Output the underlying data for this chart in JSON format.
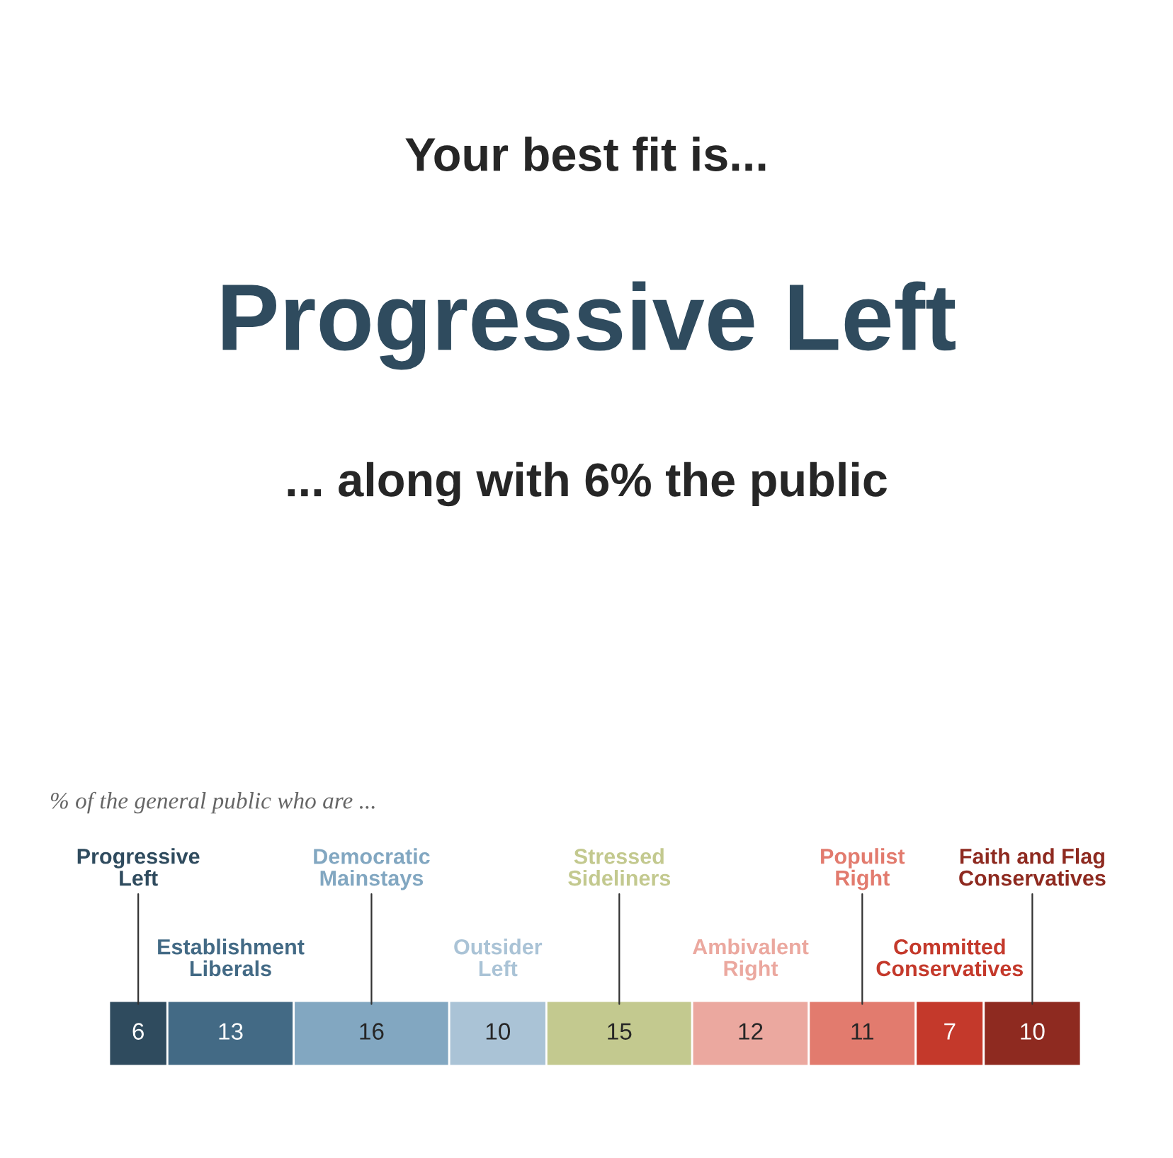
{
  "chart_data": {
    "type": "bar",
    "orientation": "horizontal",
    "stacked": true,
    "data_labels": true,
    "legend": false,
    "title": "Your best fit is...",
    "subtitle": "Progressive Left",
    "annotations": [
      "... along with 6% the public",
      "% of the general public who are ..."
    ],
    "categories": [
      null
    ],
    "series": [
      {
        "name": "Progressive Left",
        "color": "#2f4b5e",
        "values": [
          6
        ]
      },
      {
        "name": "Establishment Liberals",
        "color": "#436a85",
        "values": [
          13
        ]
      },
      {
        "name": "Democratic Mainstays",
        "color": "#82a7c1",
        "values": [
          16
        ]
      },
      {
        "name": "Outsider Left",
        "color": "#aac3d6",
        "values": [
          10
        ]
      },
      {
        "name": "Stressed Sideliners",
        "color": "#c3c98f",
        "values": [
          15
        ]
      },
      {
        "name": "Ambivalent Right",
        "color": "#eba89f",
        "values": [
          12
        ]
      },
      {
        "name": "Populist Right",
        "color": "#e27b6e",
        "values": [
          11
        ]
      },
      {
        "name": "Committed Conservatives",
        "color": "#c4392b",
        "values": [
          7
        ]
      },
      {
        "name": "Faith and Flag Conservatives",
        "color": "#8e2a20",
        "values": [
          10
        ]
      }
    ]
  }
}
